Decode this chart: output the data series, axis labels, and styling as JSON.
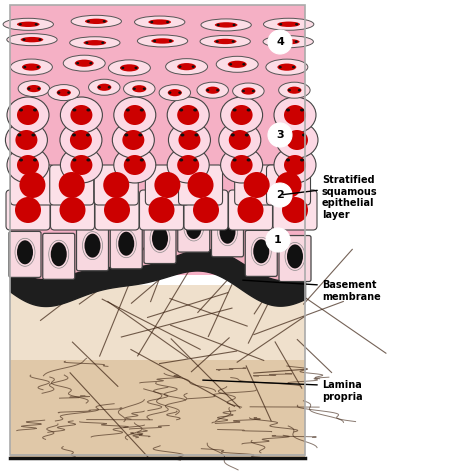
{
  "bg_color": "#ffffff",
  "lamina_propria_color_top": "#e8d5c0",
  "lamina_propria_color_bot": "#d4b896",
  "basement_membrane_color": "#222222",
  "epithelium_bg_color": "#f0a0b8",
  "cell_fill_light": "#fce8ee",
  "cell_fill_mid": "#f8d0da",
  "cell_border_color": "#444444",
  "nucleus_red": "#cc0000",
  "nucleus_dark": "#111111",
  "annotation_1": "Stratified\nsquamous\nepithelial\nlayer",
  "annotation_2": "Basement\nmembrane",
  "annotation_3": "Lamina\npropria",
  "figsize": [
    4.74,
    4.76
  ],
  "dpi": 100
}
